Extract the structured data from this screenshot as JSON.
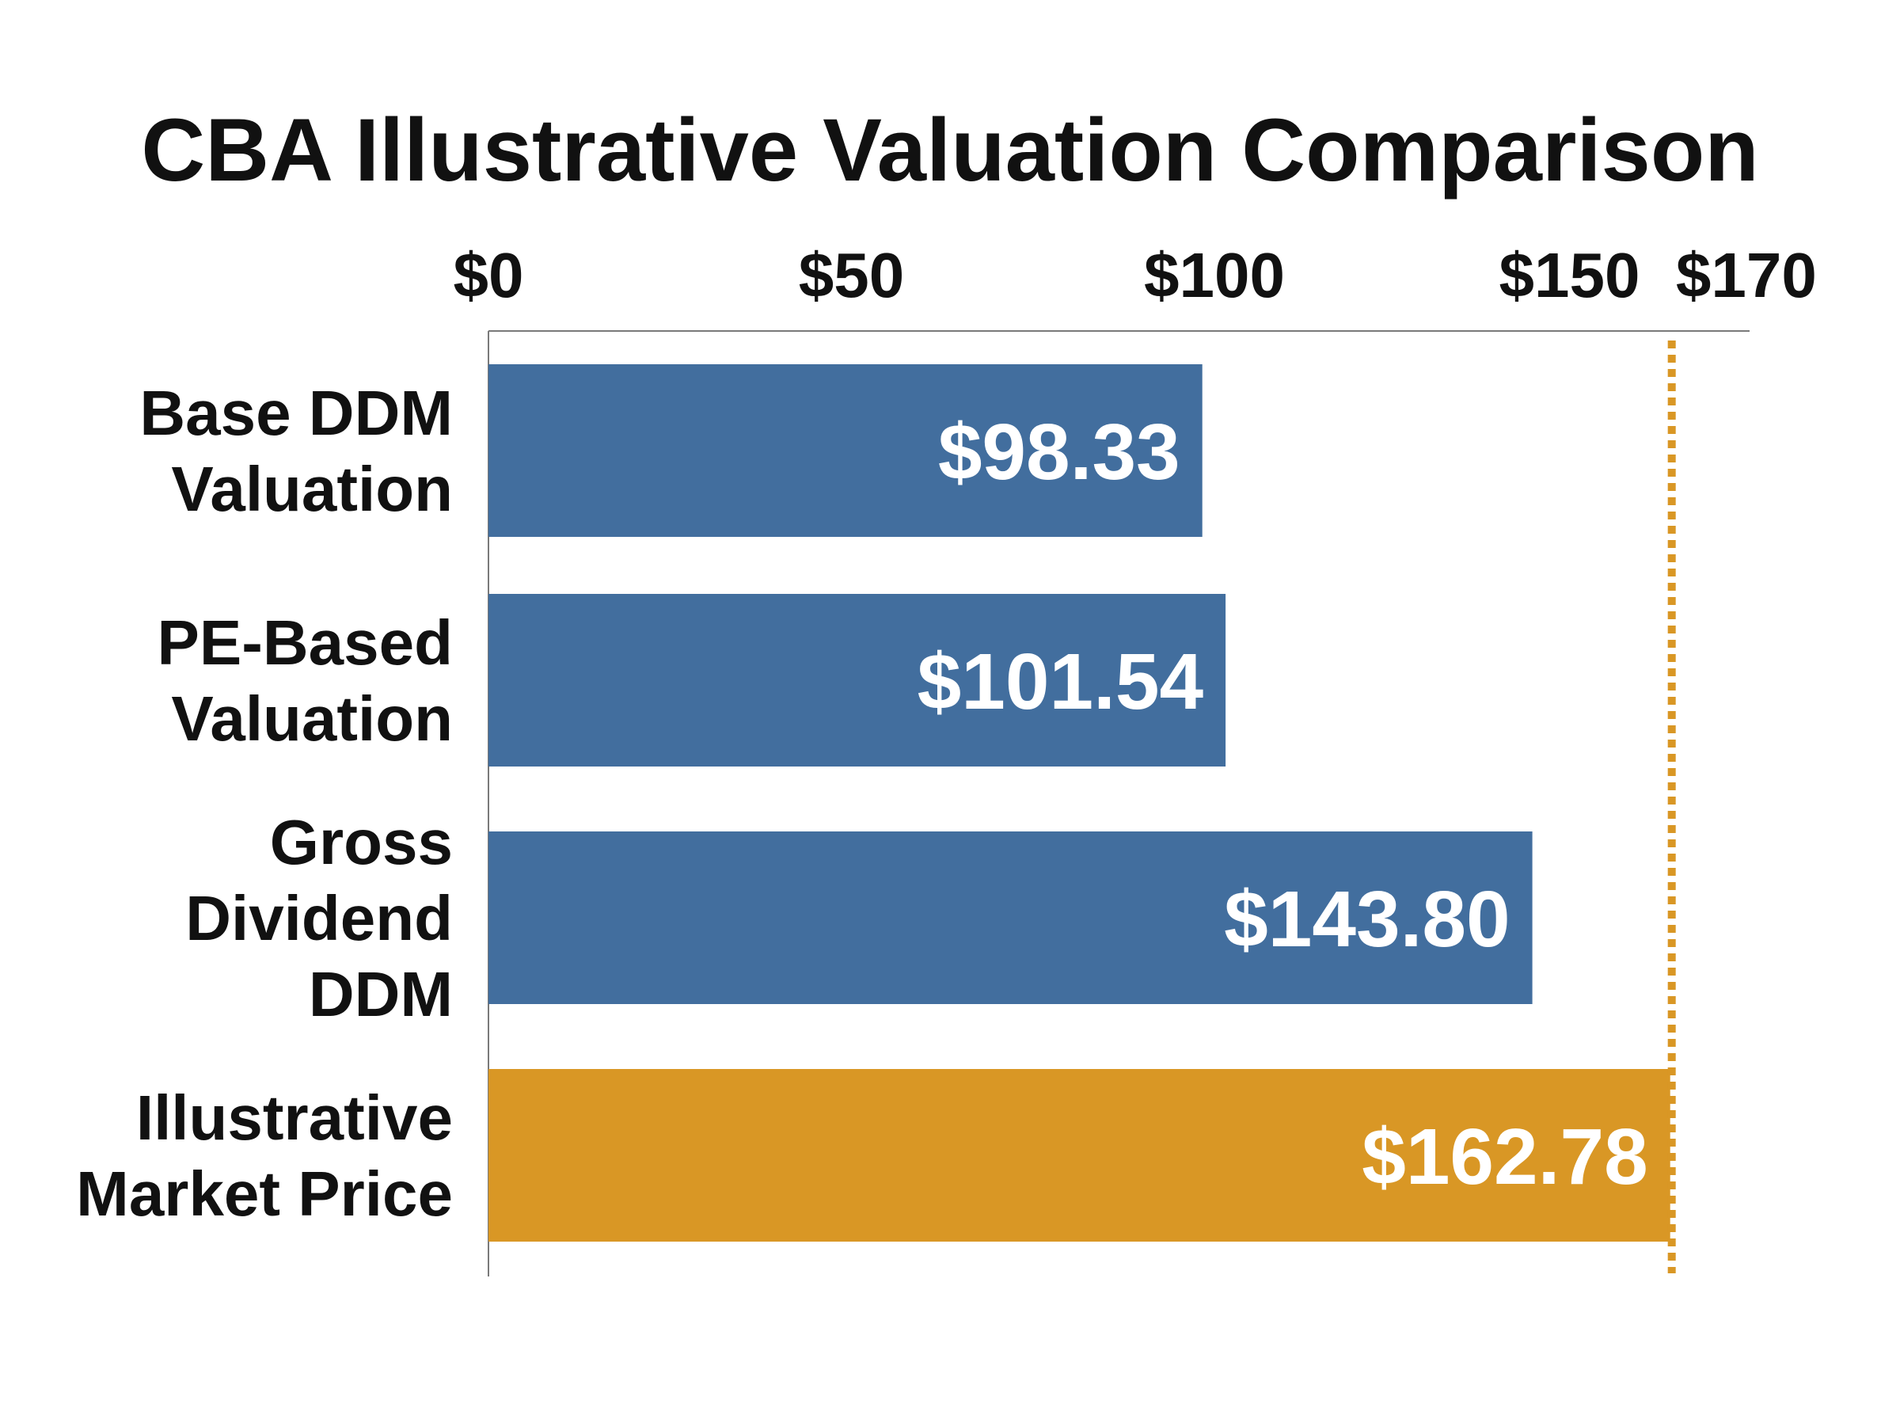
{
  "chart_data": {
    "type": "bar",
    "orientation": "horizontal",
    "title": "CBA Illustrative Valuation Comparison",
    "xlabel": "",
    "ylabel": "",
    "xlim": [
      0,
      170
    ],
    "x_ticks": [
      {
        "value": 0,
        "label": "$0"
      },
      {
        "value": 50,
        "label": "$50"
      },
      {
        "value": 100,
        "label": "$100"
      },
      {
        "value": 150,
        "label": "$150"
      },
      {
        "value": 170,
        "label": "$170"
      }
    ],
    "tick_position": "top",
    "grid": false,
    "legend": "none",
    "bars": [
      {
        "lines": [
          "Base DDM",
          "Valuation"
        ],
        "value": 98.33,
        "label": "$98.33",
        "color": "#426E9E"
      },
      {
        "lines": [
          "PE-Based",
          "Valuation"
        ],
        "value": 101.54,
        "label": "$101.54",
        "color": "#426E9E"
      },
      {
        "lines": [
          "Gross",
          "Dividend",
          "DDM"
        ],
        "value": 143.8,
        "label": "$143.80",
        "color": "#426E9E"
      },
      {
        "lines": [
          "Illustrative",
          "Market Price"
        ],
        "value": 162.78,
        "label": "$162.78",
        "color": "#D99725"
      }
    ],
    "reference_line": {
      "value": 162.78,
      "style": "dotted",
      "color": "#D99725"
    }
  }
}
